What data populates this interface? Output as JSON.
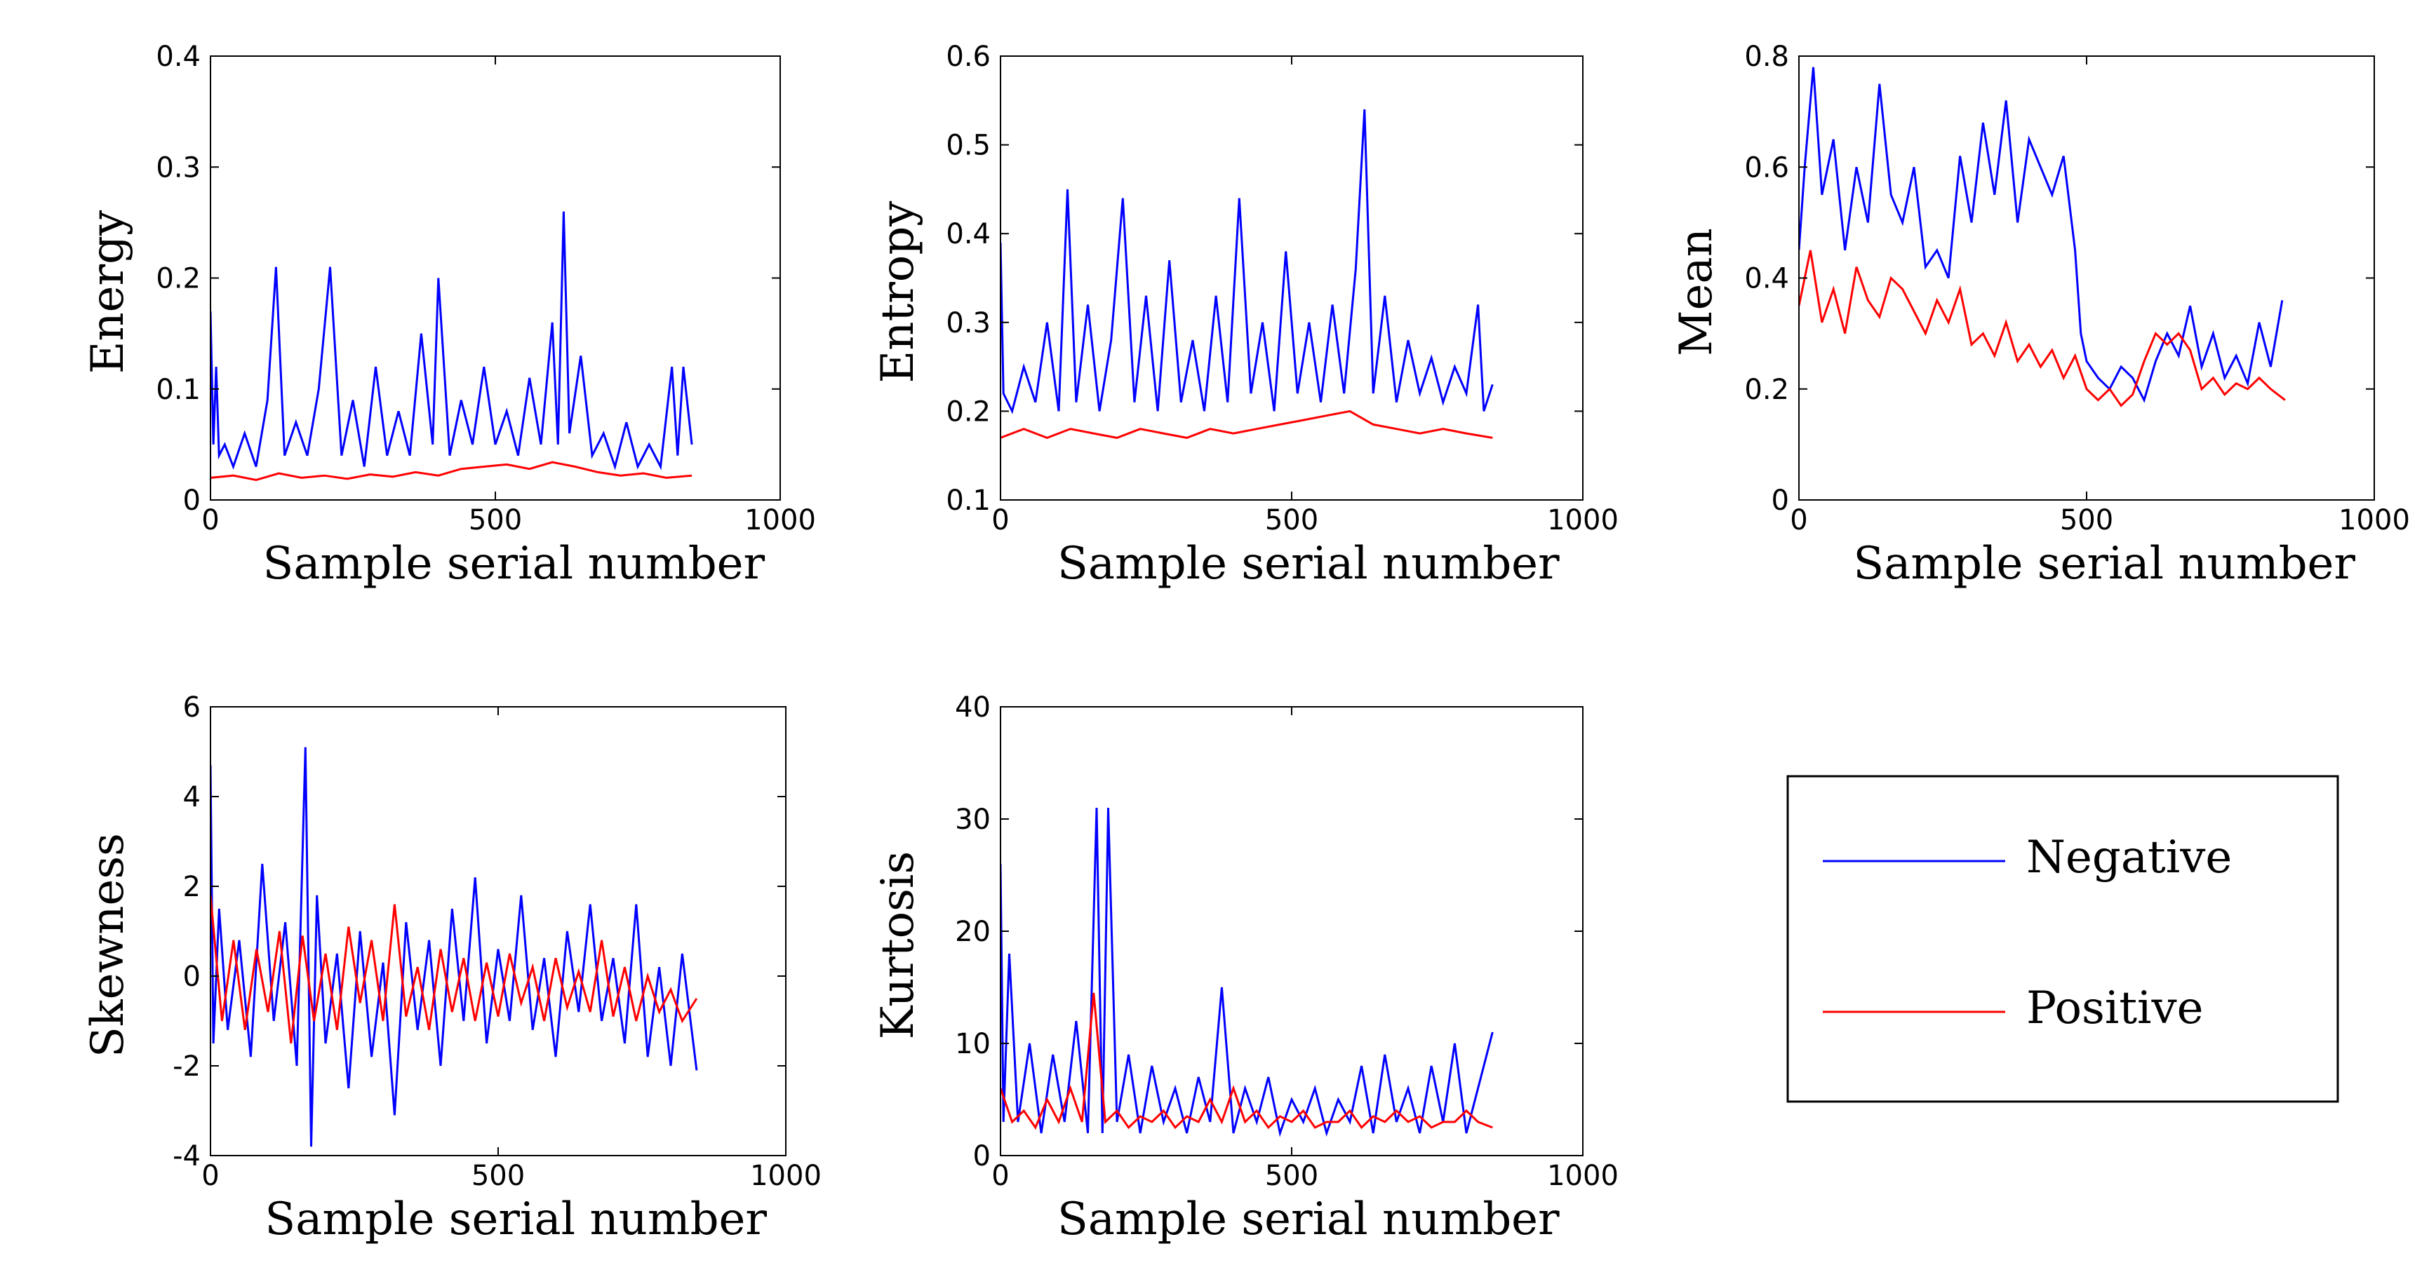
{
  "chart_data": [
    {
      "type": "line",
      "id": "energy",
      "xlabel": "Sample serial number",
      "ylabel": "Energy",
      "xlim": [
        0,
        1000
      ],
      "ylim": [
        0,
        0.4
      ],
      "xticks": [
        "0",
        "500",
        "1000"
      ],
      "yticks": [
        "0",
        "0.1",
        "0.2",
        "0.3",
        "0.4"
      ],
      "series": [
        {
          "name": "Negative",
          "color": "#0000ff",
          "x": [
            0,
            5,
            10,
            15,
            25,
            40,
            60,
            80,
            100,
            115,
            130,
            150,
            170,
            190,
            210,
            230,
            250,
            270,
            290,
            310,
            330,
            350,
            370,
            390,
            400,
            420,
            440,
            460,
            480,
            500,
            520,
            540,
            560,
            580,
            600,
            610,
            620,
            630,
            650,
            670,
            690,
            710,
            730,
            750,
            770,
            790,
            810,
            820,
            830,
            845
          ],
          "y": [
            0.17,
            0.05,
            0.12,
            0.04,
            0.05,
            0.03,
            0.06,
            0.03,
            0.09,
            0.21,
            0.04,
            0.07,
            0.04,
            0.1,
            0.21,
            0.04,
            0.09,
            0.03,
            0.12,
            0.04,
            0.08,
            0.04,
            0.15,
            0.05,
            0.2,
            0.04,
            0.09,
            0.05,
            0.12,
            0.05,
            0.08,
            0.04,
            0.11,
            0.05,
            0.16,
            0.05,
            0.26,
            0.06,
            0.13,
            0.04,
            0.06,
            0.03,
            0.07,
            0.03,
            0.05,
            0.03,
            0.12,
            0.04,
            0.12,
            0.05
          ]
        },
        {
          "name": "Positive",
          "color": "#ff0000",
          "x": [
            0,
            40,
            80,
            120,
            160,
            200,
            240,
            280,
            320,
            360,
            400,
            440,
            480,
            520,
            560,
            600,
            640,
            680,
            720,
            760,
            800,
            845
          ],
          "y": [
            0.02,
            0.022,
            0.018,
            0.024,
            0.02,
            0.022,
            0.019,
            0.023,
            0.021,
            0.025,
            0.022,
            0.028,
            0.03,
            0.032,
            0.028,
            0.034,
            0.03,
            0.025,
            0.022,
            0.024,
            0.02,
            0.022
          ]
        }
      ]
    },
    {
      "type": "line",
      "id": "entropy",
      "xlabel": "Sample serial number",
      "ylabel": "Entropy",
      "xlim": [
        0,
        1000
      ],
      "ylim": [
        0.1,
        0.6
      ],
      "xticks": [
        "0",
        "500",
        "1000"
      ],
      "yticks": [
        "0.1",
        "0.2",
        "0.3",
        "0.4",
        "0.5",
        "0.6"
      ],
      "series": [
        {
          "name": "Negative",
          "color": "#0000ff",
          "x": [
            0,
            5,
            20,
            40,
            60,
            80,
            100,
            115,
            130,
            150,
            170,
            190,
            210,
            230,
            250,
            270,
            290,
            310,
            330,
            350,
            370,
            390,
            410,
            430,
            450,
            470,
            490,
            510,
            530,
            550,
            570,
            590,
            610,
            625,
            640,
            660,
            680,
            700,
            720,
            740,
            760,
            780,
            800,
            820,
            830,
            845
          ],
          "y": [
            0.39,
            0.22,
            0.2,
            0.25,
            0.21,
            0.3,
            0.2,
            0.45,
            0.21,
            0.32,
            0.2,
            0.28,
            0.44,
            0.21,
            0.33,
            0.2,
            0.37,
            0.21,
            0.28,
            0.2,
            0.33,
            0.21,
            0.44,
            0.22,
            0.3,
            0.2,
            0.38,
            0.22,
            0.3,
            0.21,
            0.32,
            0.22,
            0.36,
            0.54,
            0.22,
            0.33,
            0.21,
            0.28,
            0.22,
            0.26,
            0.21,
            0.25,
            0.22,
            0.32,
            0.2,
            0.23
          ]
        },
        {
          "name": "Positive",
          "color": "#ff0000",
          "x": [
            0,
            40,
            80,
            120,
            160,
            200,
            240,
            280,
            320,
            360,
            400,
            440,
            480,
            520,
            560,
            600,
            640,
            680,
            720,
            760,
            800,
            845
          ],
          "y": [
            0.17,
            0.18,
            0.17,
            0.18,
            0.175,
            0.17,
            0.18,
            0.175,
            0.17,
            0.18,
            0.175,
            0.18,
            0.185,
            0.19,
            0.195,
            0.2,
            0.185,
            0.18,
            0.175,
            0.18,
            0.175,
            0.17
          ]
        }
      ]
    },
    {
      "type": "line",
      "id": "mean",
      "xlabel": "Sample serial number",
      "ylabel": "Mean",
      "xlim": [
        0,
        1000
      ],
      "ylim": [
        0,
        0.8
      ],
      "xticks": [
        "0",
        "500",
        "1000"
      ],
      "yticks": [
        "0",
        "0.2",
        "0.4",
        "0.6",
        "0.8"
      ],
      "series": [
        {
          "name": "Negative",
          "color": "#0000ff",
          "x": [
            0,
            10,
            25,
            40,
            60,
            80,
            100,
            120,
            140,
            160,
            180,
            200,
            220,
            240,
            260,
            280,
            300,
            320,
            340,
            360,
            380,
            400,
            420,
            440,
            460,
            480,
            490,
            500,
            520,
            540,
            560,
            580,
            600,
            620,
            640,
            660,
            680,
            700,
            720,
            740,
            760,
            780,
            800,
            820,
            840
          ],
          "y": [
            0.45,
            0.6,
            0.78,
            0.55,
            0.65,
            0.45,
            0.6,
            0.5,
            0.75,
            0.55,
            0.5,
            0.6,
            0.42,
            0.45,
            0.4,
            0.62,
            0.5,
            0.68,
            0.55,
            0.72,
            0.5,
            0.65,
            0.6,
            0.55,
            0.62,
            0.45,
            0.3,
            0.25,
            0.22,
            0.2,
            0.24,
            0.22,
            0.18,
            0.25,
            0.3,
            0.26,
            0.35,
            0.24,
            0.3,
            0.22,
            0.26,
            0.21,
            0.32,
            0.24,
            0.36
          ]
        },
        {
          "name": "Positive",
          "color": "#ff0000",
          "x": [
            0,
            20,
            40,
            60,
            80,
            100,
            120,
            140,
            160,
            180,
            200,
            220,
            240,
            260,
            280,
            300,
            320,
            340,
            360,
            380,
            400,
            420,
            440,
            460,
            480,
            500,
            520,
            540,
            560,
            580,
            600,
            620,
            640,
            660,
            680,
            700,
            720,
            740,
            760,
            780,
            800,
            820,
            845
          ],
          "y": [
            0.35,
            0.45,
            0.32,
            0.38,
            0.3,
            0.42,
            0.36,
            0.33,
            0.4,
            0.38,
            0.34,
            0.3,
            0.36,
            0.32,
            0.38,
            0.28,
            0.3,
            0.26,
            0.32,
            0.25,
            0.28,
            0.24,
            0.27,
            0.22,
            0.26,
            0.2,
            0.18,
            0.2,
            0.17,
            0.19,
            0.25,
            0.3,
            0.28,
            0.3,
            0.27,
            0.2,
            0.22,
            0.19,
            0.21,
            0.2,
            0.22,
            0.2,
            0.18
          ]
        }
      ]
    },
    {
      "type": "line",
      "id": "skewness",
      "xlabel": "Sample serial number",
      "ylabel": "Skewness",
      "xlim": [
        0,
        1000
      ],
      "ylim": [
        -4,
        6
      ],
      "xticks": [
        "0",
        "500",
        "1000"
      ],
      "yticks": [
        "-4",
        "-2",
        "0",
        "2",
        "4",
        "6"
      ],
      "series": [
        {
          "name": "Negative",
          "color": "#0000ff",
          "x": [
            0,
            5,
            15,
            30,
            50,
            70,
            90,
            110,
            130,
            150,
            165,
            175,
            185,
            200,
            220,
            240,
            260,
            280,
            300,
            320,
            340,
            360,
            380,
            400,
            420,
            440,
            460,
            480,
            500,
            520,
            540,
            560,
            580,
            600,
            620,
            640,
            660,
            680,
            700,
            720,
            740,
            760,
            780,
            800,
            820,
            845
          ],
          "y": [
            4.7,
            -1.5,
            1.5,
            -1.2,
            0.8,
            -1.8,
            2.5,
            -1.0,
            1.2,
            -2.0,
            5.1,
            -3.8,
            1.8,
            -1.5,
            0.5,
            -2.5,
            1.0,
            -1.8,
            0.3,
            -3.1,
            1.2,
            -1.2,
            0.8,
            -2.0,
            1.5,
            -1.0,
            2.2,
            -1.5,
            0.6,
            -1.0,
            1.8,
            -1.2,
            0.4,
            -1.8,
            1.0,
            -0.8,
            1.6,
            -1.0,
            0.4,
            -1.5,
            1.6,
            -1.8,
            0.2,
            -2.0,
            0.5,
            -2.1
          ]
        },
        {
          "name": "Positive",
          "color": "#ff0000",
          "x": [
            0,
            20,
            40,
            60,
            80,
            100,
            120,
            140,
            160,
            180,
            200,
            220,
            240,
            260,
            280,
            300,
            320,
            340,
            360,
            380,
            400,
            420,
            440,
            460,
            480,
            500,
            520,
            540,
            560,
            580,
            600,
            620,
            640,
            660,
            680,
            700,
            720,
            740,
            760,
            780,
            800,
            820,
            845
          ],
          "y": [
            1.8,
            -1.0,
            0.8,
            -1.2,
            0.6,
            -0.8,
            1.0,
            -1.5,
            0.9,
            -1.0,
            0.5,
            -1.2,
            1.1,
            -0.6,
            0.8,
            -1.0,
            1.6,
            -0.9,
            0.2,
            -1.2,
            0.6,
            -0.8,
            0.4,
            -1.0,
            0.3,
            -0.9,
            0.5,
            -0.6,
            0.2,
            -1.0,
            0.4,
            -0.7,
            0.1,
            -0.8,
            0.8,
            -0.9,
            0.2,
            -1.0,
            0.0,
            -0.8,
            -0.3,
            -1.0,
            -0.5
          ]
        }
      ]
    },
    {
      "type": "line",
      "id": "kurtosis",
      "xlabel": "Sample serial number",
      "ylabel": "Kurtosis",
      "xlim": [
        0,
        1000
      ],
      "ylim": [
        0,
        40
      ],
      "xticks": [
        "0",
        "500",
        "1000"
      ],
      "yticks": [
        "0",
        "10",
        "20",
        "30",
        "40"
      ],
      "series": [
        {
          "name": "Negative",
          "color": "#0000ff",
          "x": [
            0,
            5,
            15,
            30,
            50,
            70,
            90,
            110,
            130,
            150,
            165,
            175,
            185,
            200,
            220,
            240,
            260,
            280,
            300,
            320,
            340,
            360,
            380,
            400,
            420,
            440,
            460,
            480,
            500,
            520,
            540,
            560,
            580,
            600,
            620,
            640,
            660,
            680,
            700,
            720,
            740,
            760,
            780,
            800,
            820,
            845
          ],
          "y": [
            26,
            3,
            18,
            3,
            10,
            2,
            9,
            3,
            12,
            2,
            31,
            2,
            31,
            3,
            9,
            2,
            8,
            3,
            6,
            2,
            7,
            3,
            15,
            2,
            6,
            3,
            7,
            2,
            5,
            3,
            6,
            2,
            5,
            3,
            8,
            2,
            9,
            3,
            6,
            2,
            8,
            3,
            10,
            2,
            6,
            11
          ]
        },
        {
          "name": "Positive",
          "color": "#ff0000",
          "x": [
            0,
            20,
            40,
            60,
            80,
            100,
            120,
            140,
            160,
            180,
            200,
            220,
            240,
            260,
            280,
            300,
            320,
            340,
            360,
            380,
            400,
            420,
            440,
            460,
            480,
            500,
            520,
            540,
            560,
            580,
            600,
            620,
            640,
            660,
            680,
            700,
            720,
            740,
            760,
            780,
            800,
            820,
            845
          ],
          "y": [
            6,
            3,
            4,
            2.5,
            5,
            3,
            6,
            3,
            14.5,
            3,
            4,
            2.5,
            3.5,
            3,
            4,
            2.5,
            3.5,
            3,
            5,
            3,
            6,
            3,
            4,
            2.5,
            3.5,
            3,
            4,
            2.5,
            3,
            3,
            4,
            2.5,
            3.5,
            3,
            4,
            3,
            3.5,
            2.5,
            3,
            3,
            4,
            3,
            2.5
          ]
        }
      ]
    }
  ],
  "legend": {
    "items": [
      {
        "label": "Negative",
        "color": "#0000ff"
      },
      {
        "label": "Positive",
        "color": "#ff0000"
      }
    ]
  }
}
